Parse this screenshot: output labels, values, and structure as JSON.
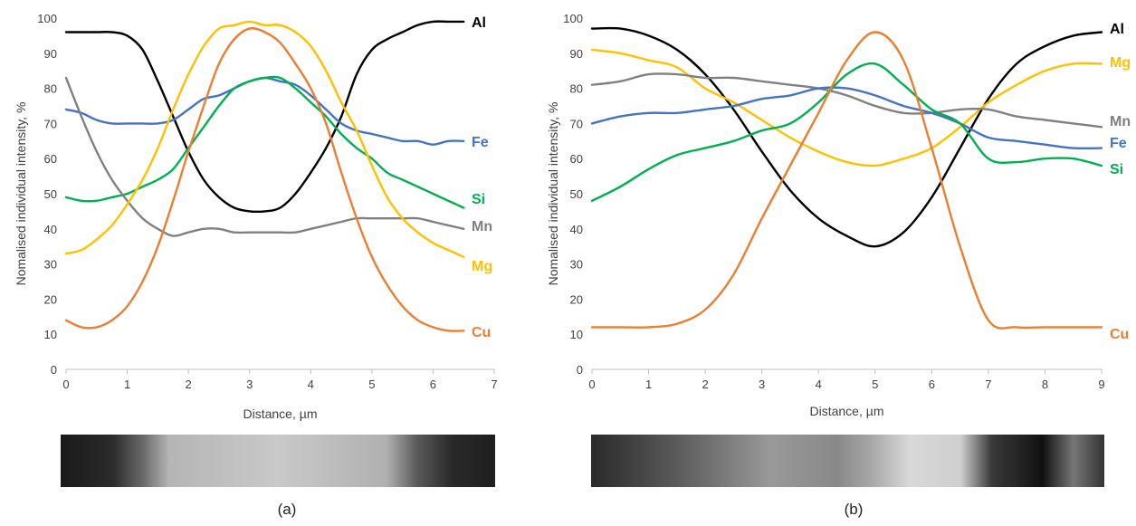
{
  "chart_data": [
    {
      "type": "line",
      "panel_label": "(a)",
      "xlabel": "Distance, µm",
      "ylabel": "Nomalised individual intensity, %",
      "xlim": [
        0,
        7
      ],
      "ylim": [
        0,
        100
      ],
      "xticks": [
        "0",
        "1",
        "2",
        "3",
        "4",
        "5",
        "6",
        "7"
      ],
      "yticks": [
        "0",
        "10",
        "20",
        "30",
        "40",
        "50",
        "60",
        "70",
        "80",
        "90",
        "100"
      ],
      "grid": false,
      "legend": "end-of-line labels",
      "x": [
        0,
        0.25,
        0.5,
        0.75,
        1,
        1.25,
        1.5,
        1.75,
        2,
        2.25,
        2.5,
        2.75,
        3,
        3.25,
        3.5,
        3.75,
        4,
        4.25,
        4.5,
        4.75,
        5,
        5.25,
        5.5,
        5.75,
        6,
        6.25,
        6.5
      ],
      "series": [
        {
          "name": "Al",
          "color": "#000000",
          "values": [
            96,
            96,
            96,
            96,
            95,
            91,
            82,
            72,
            62,
            54,
            49,
            46,
            45,
            45,
            46,
            50,
            56,
            63,
            72,
            84,
            91,
            94,
            96,
            98,
            99,
            99,
            99
          ]
        },
        {
          "name": "Fe",
          "color": "#4472C4",
          "values": [
            74,
            73,
            71,
            70,
            70,
            70,
            70,
            71,
            74,
            77,
            78,
            80,
            82,
            83,
            82,
            81,
            78,
            74,
            70,
            68,
            67,
            66,
            65,
            65,
            64,
            65,
            65
          ]
        },
        {
          "name": "Si",
          "color": "#00B050",
          "values": [
            49,
            48,
            48,
            49,
            50,
            52,
            54,
            57,
            63,
            69,
            75,
            80,
            82,
            83,
            83,
            80,
            76,
            72,
            67,
            63,
            60,
            56,
            54,
            52,
            50,
            48,
            46
          ]
        },
        {
          "name": "Mn",
          "color": "#808080",
          "values": [
            83,
            72,
            62,
            54,
            48,
            43,
            40,
            38,
            39,
            40,
            40,
            39,
            39,
            39,
            39,
            39,
            40,
            41,
            42,
            43,
            43,
            43,
            43,
            43,
            42,
            41,
            40
          ]
        },
        {
          "name": "Mg",
          "color": "#FFC000",
          "values": [
            33,
            34,
            37,
            41,
            47,
            54,
            63,
            74,
            84,
            92,
            97,
            98,
            99,
            98,
            98,
            96,
            92,
            85,
            76,
            68,
            58,
            49,
            43,
            39,
            36,
            34,
            32
          ]
        },
        {
          "name": "Cu",
          "color": "#ED7D31",
          "values": [
            14,
            12,
            12,
            14,
            18,
            25,
            35,
            48,
            62,
            75,
            87,
            94,
            97,
            96,
            93,
            87,
            80,
            70,
            56,
            43,
            32,
            24,
            18,
            14,
            12,
            11,
            11
          ]
        }
      ]
    },
    {
      "type": "line",
      "panel_label": "(b)",
      "xlabel": "Distance, µm",
      "ylabel": "Nomalised individual intensity, %",
      "xlim": [
        0,
        9
      ],
      "ylim": [
        0,
        100
      ],
      "xticks": [
        "0",
        "1",
        "2",
        "3",
        "4",
        "5",
        "6",
        "7",
        "8",
        "9"
      ],
      "yticks": [
        "0",
        "10",
        "20",
        "30",
        "40",
        "50",
        "60",
        "70",
        "80",
        "90",
        "100"
      ],
      "grid": false,
      "legend": "end-of-line labels",
      "x": [
        0,
        0.5,
        1,
        1.5,
        2,
        2.5,
        3,
        3.5,
        4,
        4.5,
        5,
        5.5,
        6,
        6.5,
        7,
        7.5,
        8,
        8.5,
        9
      ],
      "series": [
        {
          "name": "Al",
          "color": "#000000",
          "values": [
            97,
            97,
            95,
            91,
            84,
            74,
            62,
            51,
            43,
            38,
            35,
            39,
            49,
            63,
            77,
            87,
            92,
            95,
            96
          ]
        },
        {
          "name": "Mg",
          "color": "#FFC000",
          "values": [
            91,
            90,
            88,
            86,
            80,
            76,
            71,
            66,
            62,
            59,
            58,
            60,
            63,
            69,
            76,
            81,
            85,
            87,
            87
          ]
        },
        {
          "name": "Mn",
          "color": "#808080",
          "values": [
            81,
            82,
            84,
            84,
            83,
            83,
            82,
            81,
            80,
            78,
            75,
            73,
            73,
            74,
            74,
            72,
            71,
            70,
            69
          ]
        },
        {
          "name": "Fe",
          "color": "#4472C4",
          "values": [
            70,
            72,
            73,
            73,
            74,
            75,
            77,
            78,
            80,
            80,
            78,
            75,
            73,
            70,
            66,
            65,
            64,
            63,
            63
          ]
        },
        {
          "name": "Si",
          "color": "#00B050",
          "values": [
            48,
            52,
            57,
            61,
            63,
            65,
            68,
            70,
            76,
            84,
            87,
            81,
            74,
            70,
            60,
            59,
            60,
            60,
            58
          ]
        },
        {
          "name": "Cu",
          "color": "#ED7D31",
          "values": [
            12,
            12,
            12,
            13,
            17,
            27,
            43,
            58,
            73,
            88,
            96,
            88,
            63,
            35,
            14,
            12,
            12,
            12,
            12
          ]
        }
      ]
    }
  ]
}
